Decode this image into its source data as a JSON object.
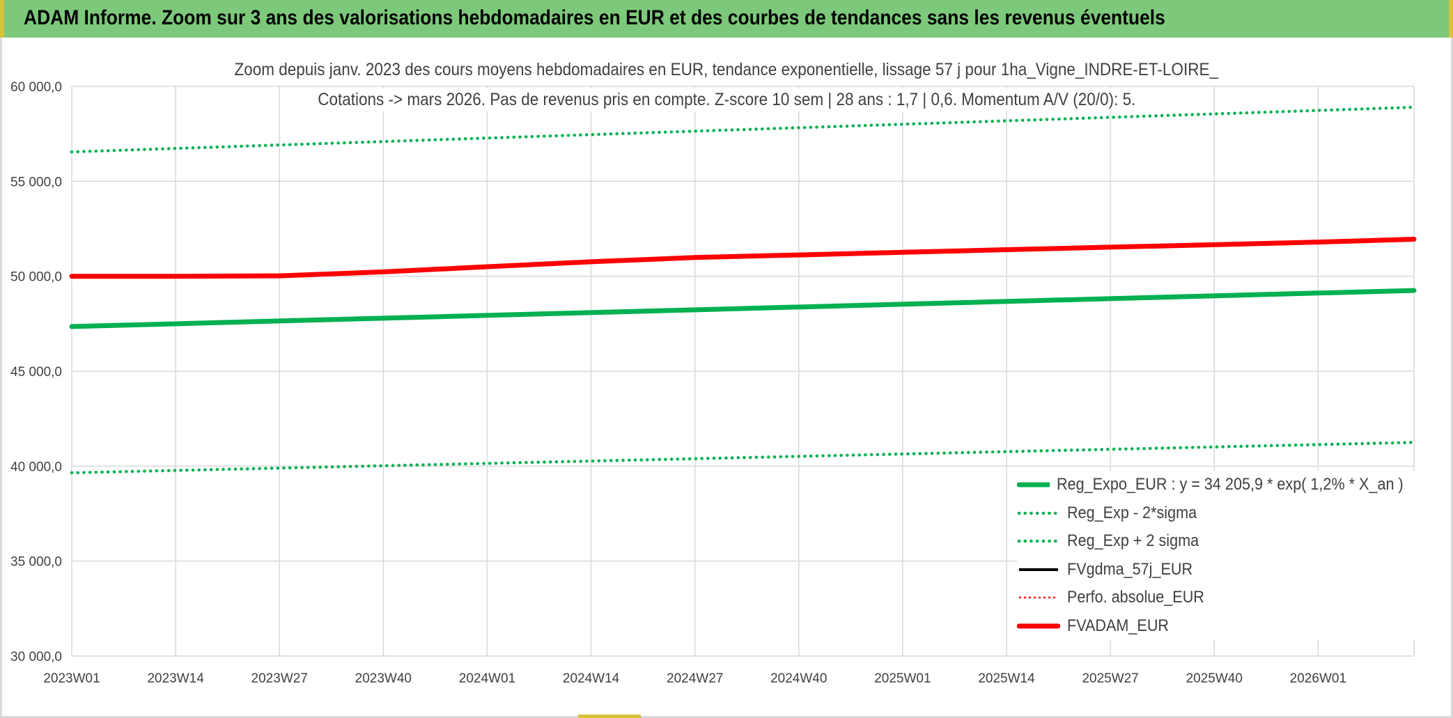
{
  "banner": {
    "title": "ADAM Informe. Zoom sur 3 ans des valorisations hebdomadaires en EUR et des courbes de tendances sans les revenus éventuels"
  },
  "colors": {
    "banner_bg": "#7dc97b",
    "green": "#00b050",
    "red": "#ff0000",
    "black": "#000000",
    "grid": "#d9d9d9",
    "text": "#404040"
  },
  "chart_data": {
    "type": "line",
    "title_line1": "Zoom depuis janv. 2023 des cours moyens hebdomadaires en EUR, tendance exponentielle, lissage 57 j pour 1ha_Vigne_INDRE-ET-LOIRE_",
    "title_line2": "Cotations -> mars 2026. Pas de revenus pris en compte. Z-score 10 sem | 28 ans : 1,7 | 0,6. Momentum A/V (20/0): 5.",
    "x_ticks": [
      "2023W01",
      "2023W14",
      "2023W27",
      "2023W40",
      "2024W01",
      "2024W14",
      "2024W27",
      "2024W40",
      "2025W01",
      "2025W14",
      "2025W27",
      "2025W40",
      "2026W01"
    ],
    "x_range": [
      "2023W01",
      "2026W13"
    ],
    "y_ticks": [
      "60 000,0",
      "55 000,0",
      "50 000,0",
      "45 000,0",
      "40 000,0",
      "35 000,0",
      "30 000,0"
    ],
    "ylim": [
      30000,
      60000
    ],
    "grid": true,
    "legend_position": "bottom-right",
    "series": [
      {
        "name": "Reg_Expo_EUR : y = 34 205,9 * exp( 1,2% *  X_an )",
        "style": "solid-thick",
        "color": "#00b050",
        "x": [
          "2023W01",
          "2026W13"
        ],
        "y": [
          47350,
          49250
        ]
      },
      {
        "name": "Reg_Exp - 2*sigma",
        "style": "dotted",
        "color": "#00b050",
        "x": [
          "2023W01",
          "2026W13"
        ],
        "y": [
          39650,
          41250
        ]
      },
      {
        "name": "Reg_Exp + 2 sigma",
        "style": "dotted",
        "color": "#00b050",
        "x": [
          "2023W01",
          "2026W13"
        ],
        "y": [
          56550,
          58900
        ]
      },
      {
        "name": "FVgdma_57j_EUR",
        "style": "solid",
        "color": "#000000",
        "x": [],
        "y": []
      },
      {
        "name": "Perfo. absolue_EUR",
        "style": "dotted-thin",
        "color": "#ff0000",
        "x": [],
        "y": []
      },
      {
        "name": "FVADAM_EUR",
        "style": "solid-thick",
        "color": "#ff0000",
        "x": [
          "2023W01",
          "2023W14",
          "2023W27",
          "2023W40",
          "2024W01",
          "2024W14",
          "2024W27",
          "2024W40",
          "2025W01",
          "2025W14",
          "2025W27",
          "2025W40",
          "2026W01",
          "2026W13"
        ],
        "y": [
          50000,
          50000,
          50020,
          50230,
          50500,
          50760,
          50990,
          51120,
          51260,
          51400,
          51530,
          51660,
          51800,
          51950
        ]
      }
    ]
  }
}
